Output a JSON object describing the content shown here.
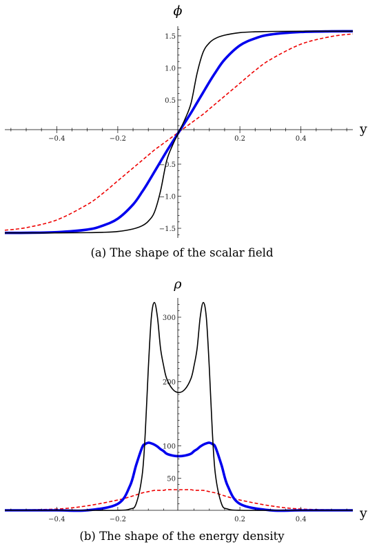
{
  "charts": [
    {
      "ylabel": "ϕ",
      "xlabel": "y",
      "caption": "(a) The shape of the scalar field",
      "x_tick_labels": [
        "−0.4",
        "−0.2",
        "0.2",
        "0.4"
      ],
      "y_tick_labels": [
        "−1.5",
        "−1.0",
        "−0.5",
        "0.5",
        "1.0",
        "1.5"
      ]
    },
    {
      "ylabel": "ρ",
      "xlabel": "y",
      "caption": "(b) The shape of the energy density",
      "x_tick_labels": [
        "−0.4",
        "−0.2",
        "0.2",
        "0.4"
      ],
      "y_tick_labels": [
        "50",
        "100",
        "200",
        "300"
      ]
    }
  ],
  "colors": {
    "black": "#000000",
    "blue": "#0000ee",
    "red": "#ee0000"
  },
  "chart_data": [
    {
      "type": "line",
      "xlabel": "y",
      "ylabel": "ϕ",
      "xlim": [
        -0.57,
        0.57
      ],
      "ylim": [
        -1.65,
        1.65
      ],
      "x_ticks": [
        -0.4,
        -0.2,
        0.2,
        0.4
      ],
      "y_ticks": [
        -1.5,
        -1.0,
        -0.5,
        0.5,
        1.0,
        1.5
      ],
      "grid": false,
      "x": [
        -0.57,
        -0.5,
        -0.4,
        -0.3,
        -0.25,
        -0.2,
        -0.15,
        -0.12,
        -0.1,
        -0.08,
        -0.06,
        -0.04,
        -0.02,
        0,
        0.02,
        0.04,
        0.06,
        0.08,
        0.1,
        0.12,
        0.15,
        0.2,
        0.25,
        0.3,
        0.4,
        0.5,
        0.57
      ],
      "series": [
        {
          "style": "solid-thin",
          "color": "black",
          "values": [
            -1.571,
            -1.571,
            -1.571,
            -1.568,
            -1.563,
            -1.55,
            -1.51,
            -1.46,
            -1.39,
            -1.25,
            -0.92,
            -0.45,
            -0.2,
            0,
            0.2,
            0.45,
            0.92,
            1.25,
            1.39,
            1.46,
            1.51,
            1.55,
            1.563,
            1.568,
            1.571,
            1.571,
            1.571
          ]
        },
        {
          "style": "solid-thick",
          "color": "blue",
          "values": [
            -1.571,
            -1.57,
            -1.56,
            -1.52,
            -1.46,
            -1.35,
            -1.13,
            -0.93,
            -0.78,
            -0.62,
            -0.46,
            -0.3,
            -0.15,
            0,
            0.15,
            0.3,
            0.46,
            0.62,
            0.78,
            0.93,
            1.13,
            1.35,
            1.46,
            1.52,
            1.56,
            1.57,
            1.571
          ]
        },
        {
          "style": "dashed",
          "color": "red",
          "values": [
            -1.53,
            -1.49,
            -1.37,
            -1.13,
            -0.96,
            -0.76,
            -0.56,
            -0.44,
            -0.36,
            -0.28,
            -0.21,
            -0.14,
            -0.07,
            0,
            0.07,
            0.14,
            0.21,
            0.28,
            0.36,
            0.44,
            0.56,
            0.76,
            0.96,
            1.13,
            1.37,
            1.49,
            1.53
          ]
        }
      ]
    },
    {
      "type": "line",
      "xlabel": "y",
      "ylabel": "ρ",
      "xlim": [
        -0.57,
        0.57
      ],
      "ylim": [
        0,
        330
      ],
      "x_ticks": [
        -0.4,
        -0.2,
        0.2,
        0.4
      ],
      "y_ticks": [
        50,
        100,
        200,
        300
      ],
      "grid": false,
      "x": [
        -0.57,
        -0.4,
        -0.3,
        -0.2,
        -0.16,
        -0.14,
        -0.12,
        -0.11,
        -0.1,
        -0.09,
        -0.08,
        -0.07,
        -0.06,
        -0.05,
        -0.04,
        -0.02,
        0,
        0.02,
        0.04,
        0.05,
        0.06,
        0.07,
        0.08,
        0.09,
        0.1,
        0.11,
        0.12,
        0.14,
        0.16,
        0.2,
        0.3,
        0.4,
        0.57
      ],
      "series": [
        {
          "style": "solid-thin",
          "color": "black",
          "values": [
            0,
            0,
            0,
            0,
            2,
            10,
            55,
            120,
            220,
            300,
            323,
            300,
            252,
            225,
            205,
            188,
            183,
            188,
            205,
            225,
            252,
            300,
            323,
            300,
            220,
            120,
            55,
            10,
            2,
            0,
            0,
            0,
            0
          ]
        },
        {
          "style": "solid-thick",
          "color": "blue",
          "values": [
            0,
            0,
            0,
            10,
            38,
            70,
            98,
            103,
            105,
            104,
            102,
            99,
            95,
            92,
            88,
            85,
            84,
            85,
            88,
            92,
            95,
            99,
            102,
            104,
            105,
            103,
            98,
            70,
            38,
            10,
            0,
            0,
            0
          ]
        },
        {
          "style": "dashed",
          "color": "red",
          "values": [
            0.3,
            2,
            7,
            16,
            21,
            24,
            27,
            28,
            29,
            30,
            31,
            31,
            31,
            31,
            32,
            32,
            32,
            32,
            32,
            31,
            31,
            31,
            31,
            30,
            29,
            28,
            27,
            24,
            21,
            16,
            7,
            2,
            0.3
          ]
        }
      ]
    }
  ]
}
